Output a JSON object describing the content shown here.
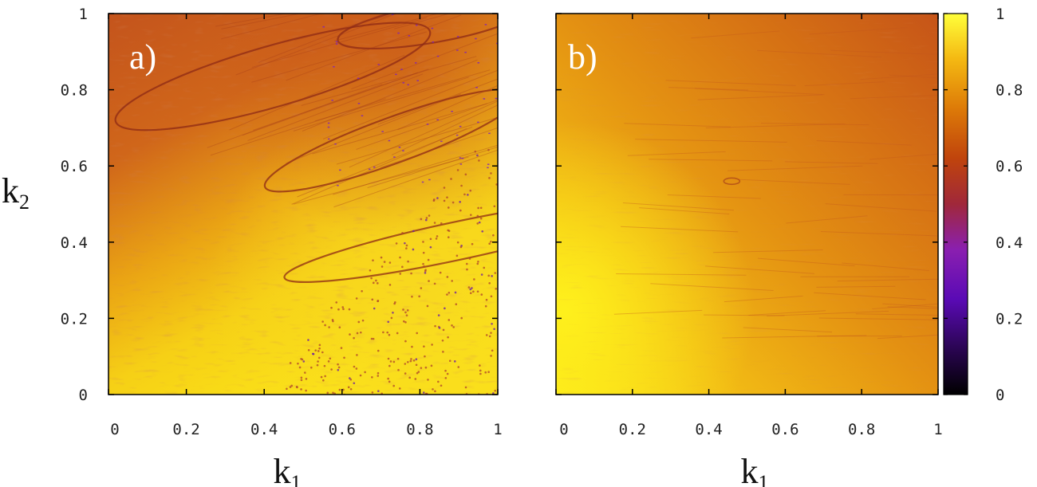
{
  "chart_data": [
    {
      "type": "heatmap",
      "panel_label": "a)",
      "xlabel": "k",
      "xlabel_sub": "1",
      "ylabel": "k",
      "ylabel_sub": "2",
      "xlim": [
        0,
        1
      ],
      "ylim": [
        0,
        1
      ],
      "x_ticks": [
        "0",
        "0.2",
        "0.4",
        "0.6",
        "0.8",
        "1"
      ],
      "y_ticks": [
        "0",
        "0.2",
        "0.4",
        "0.6",
        "0.8",
        "1"
      ],
      "description_regions": [
        {
          "k1_range": [
            0,
            0.4
          ],
          "k2_range": [
            0,
            0.4
          ],
          "value_approx": 0.97
        },
        {
          "k1_range": [
            0,
            0.3
          ],
          "k2_range": [
            0.7,
            1.0
          ],
          "value_approx": 0.68
        },
        {
          "k1_range": [
            0.5,
            1.0
          ],
          "k2_range": [
            0.0,
            0.5
          ],
          "value_approx": 0.9
        },
        {
          "k1_range": [
            0.4,
            1.0
          ],
          "k2_range": [
            0.7,
            1.0
          ],
          "value_approx": 0.7
        }
      ]
    },
    {
      "type": "heatmap",
      "panel_label": "b)",
      "xlabel": "k",
      "xlabel_sub": "1",
      "xlim": [
        0,
        1
      ],
      "ylim": [
        0,
        1
      ],
      "x_ticks": [
        "0",
        "0.2",
        "0.4",
        "0.6",
        "0.8",
        "1"
      ],
      "description_regions": [
        {
          "k1_range": [
            0,
            0.2
          ],
          "k2_range": [
            0,
            0.5
          ],
          "value_approx": 0.95
        },
        {
          "k1_range": [
            0.6,
            1.0
          ],
          "k2_range": [
            0.6,
            1.0
          ],
          "value_approx": 0.68
        },
        {
          "k1_range": [
            0.3,
            0.8
          ],
          "k2_range": [
            0.2,
            0.6
          ],
          "value_approx": 0.8
        }
      ],
      "colorbar": {
        "range": [
          0,
          1
        ],
        "ticks": [
          "0",
          "0.2",
          "0.4",
          "0.6",
          "0.8",
          "1"
        ],
        "colors": [
          "#000000",
          "#5a0a9e",
          "#8a1fb0",
          "#b7305a",
          "#d55a14",
          "#ec8e08",
          "#fbe81a",
          "#ffff66"
        ]
      }
    }
  ]
}
